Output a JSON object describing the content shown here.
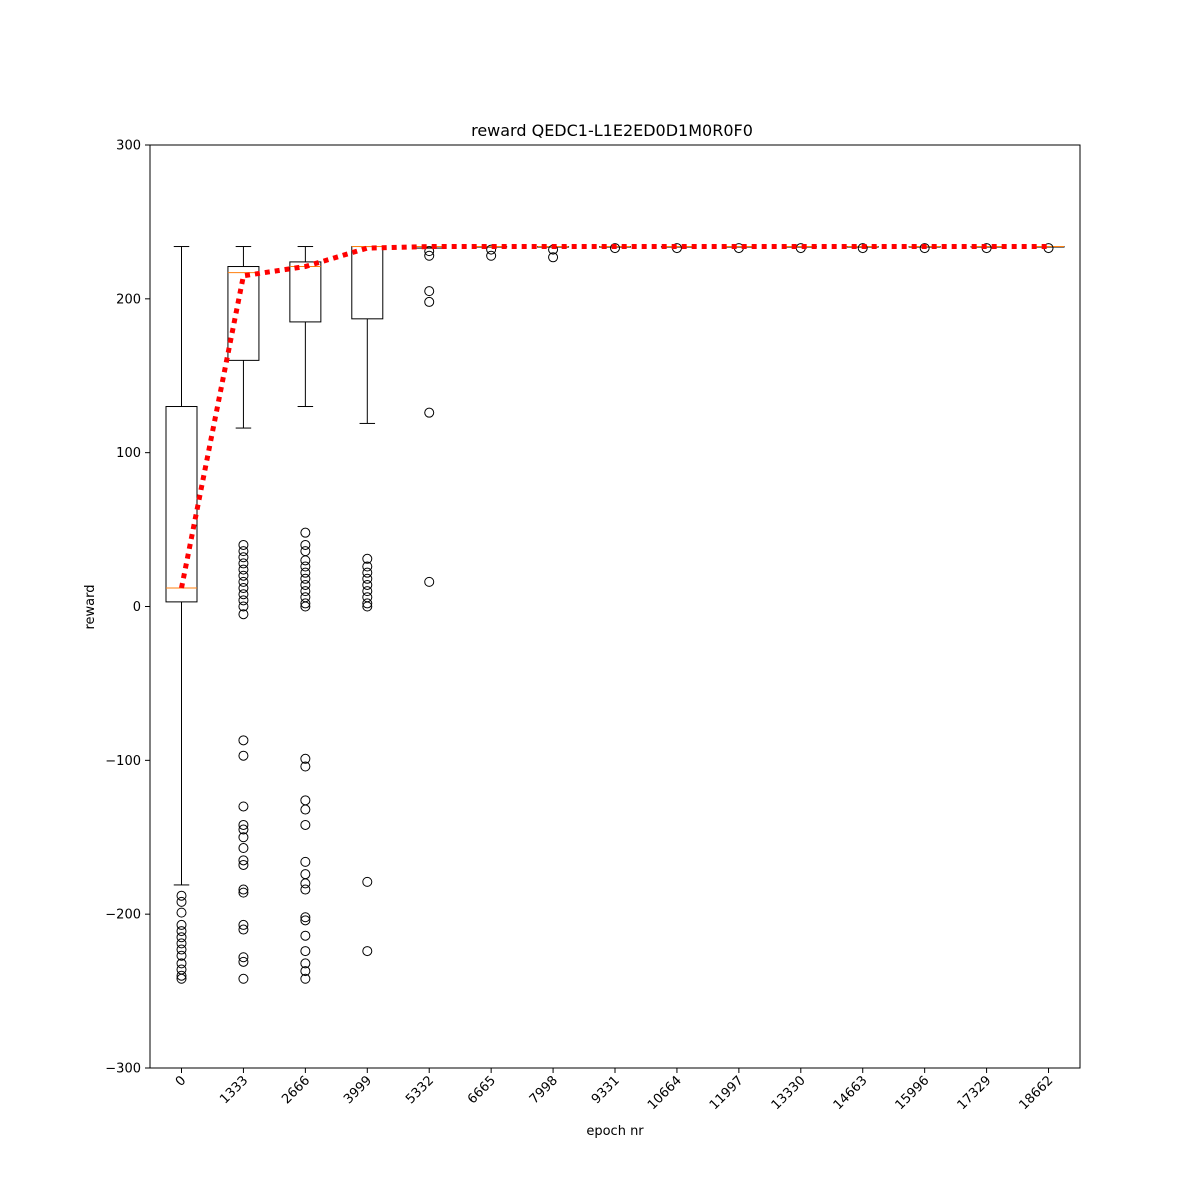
{
  "chart_data": {
    "type": "box",
    "title": "reward QEDC1-L1E2ED0D1M0R0F0",
    "xlabel": "epoch nr",
    "ylabel": "reward",
    "ylim": [
      -300,
      300
    ],
    "yticks": [
      -300,
      -200,
      -100,
      0,
      100,
      200,
      300
    ],
    "ytick_labels": [
      "−300",
      "−200",
      "−100",
      "0",
      "100",
      "200",
      "300"
    ],
    "categories": [
      "0",
      "1333",
      "2666",
      "3999",
      "5332",
      "6665",
      "7998",
      "9331",
      "10664",
      "11997",
      "13330",
      "14663",
      "15996",
      "17329",
      "18662"
    ],
    "boxes": [
      {
        "q1": 3,
        "median": 12,
        "q3": 130,
        "whisker_low": -181,
        "whisker_high": 234,
        "outliers": [
          -188,
          -192,
          -199,
          -207,
          -211,
          -215,
          -219,
          -223,
          -227,
          -232,
          -236,
          -240,
          -242
        ]
      },
      {
        "q1": 160,
        "median": 217,
        "q3": 221,
        "whisker_low": 116,
        "whisker_high": 234,
        "outliers": [
          40,
          36,
          32,
          28,
          24,
          20,
          16,
          12,
          8,
          4,
          0,
          -5,
          -87,
          -97,
          -130,
          -142,
          -145,
          -150,
          -157,
          -165,
          -168,
          -184,
          -186,
          -207,
          -210,
          -228,
          -231,
          -242
        ]
      },
      {
        "q1": 185,
        "median": 221,
        "q3": 224,
        "whisker_low": 130,
        "whisker_high": 234,
        "outliers": [
          48,
          40,
          36,
          30,
          26,
          22,
          18,
          14,
          10,
          6,
          2,
          0,
          -99,
          -104,
          -126,
          -132,
          -142,
          -166,
          -174,
          -180,
          -184,
          -202,
          -204,
          -214,
          -224,
          -232,
          -237,
          -242
        ]
      },
      {
        "q1": 187,
        "median": 234,
        "q3": 234,
        "whisker_low": 119,
        "whisker_high": 234,
        "outliers": [
          31,
          26,
          22,
          18,
          14,
          10,
          6,
          2,
          0,
          -179,
          -224
        ]
      },
      {
        "q1": 233,
        "median": 234,
        "q3": 234,
        "whisker_low": 233,
        "whisker_high": 234,
        "outliers": [
          231,
          228,
          205,
          198,
          126,
          16
        ]
      },
      {
        "q1": 234,
        "median": 234,
        "q3": 234,
        "whisker_low": 234,
        "whisker_high": 234,
        "outliers": [
          228,
          232
        ]
      },
      {
        "q1": 234,
        "median": 234,
        "q3": 234,
        "whisker_low": 234,
        "whisker_high": 234,
        "outliers": [
          227,
          232
        ]
      },
      {
        "q1": 234,
        "median": 234,
        "q3": 234,
        "whisker_low": 234,
        "whisker_high": 234,
        "outliers": [
          233
        ]
      },
      {
        "q1": 234,
        "median": 234,
        "q3": 234,
        "whisker_low": 234,
        "whisker_high": 234,
        "outliers": [
          233
        ]
      },
      {
        "q1": 234,
        "median": 234,
        "q3": 234,
        "whisker_low": 234,
        "whisker_high": 234,
        "outliers": [
          233
        ]
      },
      {
        "q1": 234,
        "median": 234,
        "q3": 234,
        "whisker_low": 234,
        "whisker_high": 234,
        "outliers": [
          233
        ]
      },
      {
        "q1": 234,
        "median": 234,
        "q3": 234,
        "whisker_low": 234,
        "whisker_high": 234,
        "outliers": [
          233
        ]
      },
      {
        "q1": 234,
        "median": 234,
        "q3": 234,
        "whisker_low": 234,
        "whisker_high": 234,
        "outliers": [
          233
        ]
      },
      {
        "q1": 234,
        "median": 234,
        "q3": 234,
        "whisker_low": 234,
        "whisker_high": 234,
        "outliers": [
          233
        ]
      },
      {
        "q1": 234,
        "median": 234,
        "q3": 234,
        "whisker_low": 234,
        "whisker_high": 234,
        "outliers": [
          233
        ]
      }
    ],
    "mean_line": {
      "values": [
        12,
        215,
        221,
        233,
        234,
        234,
        234,
        234,
        234,
        234,
        234,
        234,
        234,
        234,
        234
      ],
      "style": "dotted"
    },
    "colors": {
      "box": "#000000",
      "median": "#ff7f0e",
      "mean_line": "#ff0000",
      "outlier": "#000000"
    },
    "grid": false
  }
}
